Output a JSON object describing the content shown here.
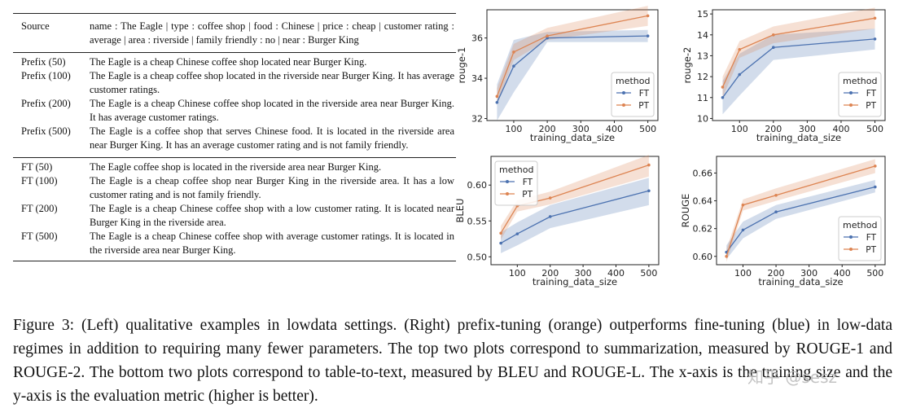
{
  "table": {
    "header": {
      "source_label": "Source",
      "source_text": "name : The Eagle | type : coffee shop | food : Chinese | price : cheap | customer rating : average | area : riverside | family friendly : no | near : Burger King"
    },
    "prefix_rows": [
      {
        "label": "Prefix (50)",
        "text": "The Eagle is a cheap Chinese coffee shop located near Burger King."
      },
      {
        "label": "Prefix (100)",
        "text": "The Eagle is a cheap coffee shop located in the riverside near Burger King. It has average customer ratings."
      },
      {
        "label": "Prefix (200)",
        "text": "The Eagle is a cheap Chinese coffee shop located in the riverside area near Burger King. It has average customer ratings."
      },
      {
        "label": "Prefix (500)",
        "text": "The Eagle is a coffee shop that serves Chinese food. It is located in the riverside area near Burger King. It has an average customer rating and is not family friendly."
      }
    ],
    "ft_rows": [
      {
        "label": "FT (50)",
        "text": "The Eagle coffee shop is located in the riverside area near Burger King."
      },
      {
        "label": "FT (100)",
        "text": "The Eagle is a cheap coffee shop near Burger King in the riverside area. It has a low customer rating and is not family friendly."
      },
      {
        "label": "FT (200)",
        "text": "The Eagle is a cheap Chinese coffee shop with a low customer rating. It is located near Burger King in the riverside area."
      },
      {
        "label": "FT (500)",
        "text": "The Eagle is a cheap Chinese coffee shop with average customer ratings. It is located in the riverside area near Burger King."
      }
    ]
  },
  "colors": {
    "ft": "#4c72b0",
    "pt": "#dd8452"
  },
  "chart_data": [
    {
      "type": "line",
      "title": "",
      "xlabel": "training_data_size",
      "ylabel": "rouge-1",
      "x": [
        50,
        100,
        200,
        500
      ],
      "xlim": [
        20,
        530
      ],
      "xticks": [
        100,
        200,
        300,
        400,
        500
      ],
      "ylim": [
        31.9,
        37.4
      ],
      "yticks": [
        32,
        34,
        36
      ],
      "legend_title": "method",
      "legend_position": "lower-right",
      "series": [
        {
          "name": "FT",
          "values": [
            32.8,
            34.6,
            36.0,
            36.1
          ],
          "band_low": [
            31.9,
            33.3,
            35.8,
            35.8
          ],
          "band_high": [
            33.7,
            35.9,
            36.3,
            36.4
          ]
        },
        {
          "name": "PT",
          "values": [
            33.1,
            35.3,
            36.1,
            37.1
          ],
          "band_low": [
            32.7,
            34.9,
            35.9,
            36.6
          ],
          "band_high": [
            33.5,
            35.7,
            36.5,
            37.6
          ]
        }
      ]
    },
    {
      "type": "line",
      "title": "",
      "xlabel": "training_data_size",
      "ylabel": "rouge-2",
      "x": [
        50,
        100,
        200,
        500
      ],
      "xlim": [
        20,
        530
      ],
      "xticks": [
        100,
        200,
        300,
        400,
        500
      ],
      "ylim": [
        9.9,
        15.2
      ],
      "yticks": [
        10,
        11,
        12,
        13,
        14,
        15
      ],
      "legend_title": "method",
      "legend_position": "lower-right",
      "series": [
        {
          "name": "FT",
          "values": [
            11.0,
            12.1,
            13.4,
            13.8
          ],
          "band_low": [
            10.2,
            11.1,
            12.8,
            13.3
          ],
          "band_high": [
            11.8,
            13.1,
            14.0,
            14.3
          ]
        },
        {
          "name": "PT",
          "values": [
            11.5,
            13.3,
            14.0,
            14.8
          ],
          "band_low": [
            11.0,
            12.9,
            13.6,
            14.3
          ],
          "band_high": [
            12.0,
            13.7,
            14.4,
            15.3
          ]
        }
      ]
    },
    {
      "type": "line",
      "title": "",
      "xlabel": "training_data_size",
      "ylabel": "BLEU",
      "x": [
        50,
        100,
        200,
        500
      ],
      "xlim": [
        20,
        530
      ],
      "xticks": [
        100,
        200,
        300,
        400,
        500
      ],
      "ylim": [
        0.489,
        0.64
      ],
      "yticks": [
        0.5,
        0.55,
        0.6
      ],
      "ytick_labels": [
        "0.50",
        "0.55",
        "0.60"
      ],
      "legend_title": "method",
      "legend_position": "upper-left",
      "series": [
        {
          "name": "FT",
          "values": [
            0.519,
            0.532,
            0.556,
            0.592
          ],
          "band_low": [
            0.505,
            0.516,
            0.54,
            0.572
          ],
          "band_high": [
            0.534,
            0.548,
            0.572,
            0.61
          ]
        },
        {
          "name": "PT",
          "values": [
            0.533,
            0.571,
            0.582,
            0.628
          ],
          "band_low": [
            0.524,
            0.563,
            0.573,
            0.612
          ],
          "band_high": [
            0.543,
            0.579,
            0.591,
            0.642
          ]
        }
      ]
    },
    {
      "type": "line",
      "title": "",
      "xlabel": "training_data_size",
      "ylabel": "ROUGE",
      "x": [
        50,
        100,
        200,
        500
      ],
      "xlim": [
        20,
        530
      ],
      "xticks": [
        100,
        200,
        300,
        400,
        500
      ],
      "ylim": [
        0.594,
        0.672
      ],
      "yticks": [
        0.6,
        0.62,
        0.64,
        0.66
      ],
      "ytick_labels": [
        "0.60",
        "0.62",
        "0.64",
        "0.66"
      ],
      "legend_title": "method",
      "legend_position": "lower-right",
      "series": [
        {
          "name": "FT",
          "values": [
            0.603,
            0.619,
            0.632,
            0.65
          ],
          "band_low": [
            0.598,
            0.613,
            0.627,
            0.646
          ],
          "band_high": [
            0.608,
            0.625,
            0.637,
            0.655
          ]
        },
        {
          "name": "PT",
          "values": [
            0.6,
            0.637,
            0.644,
            0.665
          ],
          "band_low": [
            0.596,
            0.633,
            0.64,
            0.66
          ],
          "band_high": [
            0.605,
            0.641,
            0.649,
            0.67
          ]
        }
      ]
    }
  ],
  "caption": {
    "label": "Figure 3:",
    "text": "(Left) qualitative examples in lowdata settings. (Right) prefix-tuning (orange) outperforms fine-tuning (blue) in low-data regimes in addition to requiring many fewer parameters. The top two plots correspond to summarization, measured by ROUGE-1 and ROUGE-2. The bottom two plots correspond to table-to-text, measured by BLEU and ROUGE-L. The x-axis is the training size and the y-axis is the evaluation metric (higher is better)."
  },
  "watermark": "知乎 @sesz"
}
